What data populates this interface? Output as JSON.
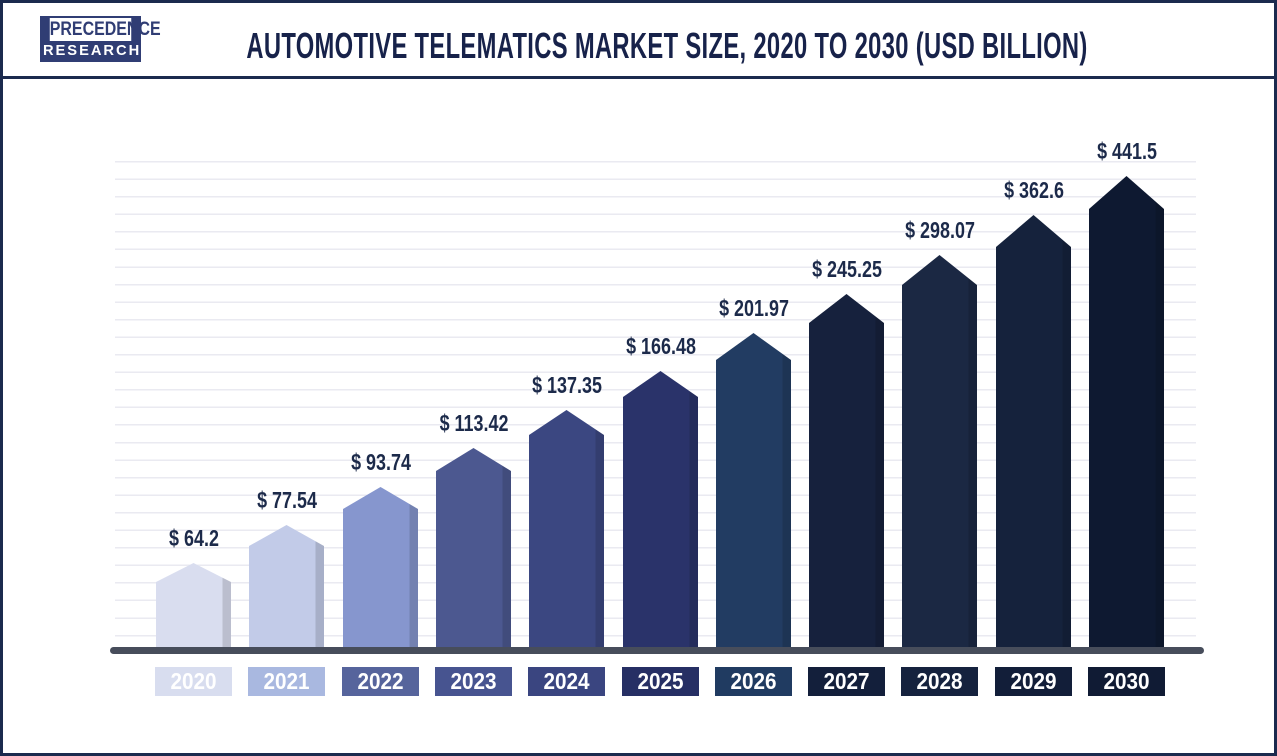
{
  "header": {
    "logo": {
      "line1": "PRECEDENCE",
      "line2": "RESEARCH"
    },
    "title": "AUTOMOTIVE TELEMATICS MARKET SIZE, 2020 TO 2030 (USD BILLION)"
  },
  "chart_data": {
    "type": "bar",
    "title": "Automotive Telematics Market Size, 2020 to 2030 (USD Billion)",
    "unit": "USD Billion",
    "categories": [
      "2020",
      "2021",
      "2022",
      "2023",
      "2024",
      "2025",
      "2026",
      "2027",
      "2028",
      "2029",
      "2030"
    ],
    "values": [
      64.2,
      77.54,
      93.74,
      113.42,
      137.35,
      166.48,
      201.97,
      245.25,
      298.07,
      362.6,
      441.5
    ],
    "value_labels": [
      "$ 64.2",
      "$ 77.54",
      "$ 93.74",
      "$ 113.42",
      "$ 137.35",
      "$ 166.48",
      "$ 201.97",
      "$ 245.25",
      "$ 298.07",
      "$ 362.6",
      "$ 441.5"
    ],
    "bar_colors": [
      "#D9DDEF",
      "#C2CBE8",
      "#8696CE",
      "#4C5890",
      "#3B4781",
      "#2A336A",
      "#223C62",
      "#16213D",
      "#1B2843",
      "#15223C",
      "#0E1931"
    ],
    "tick_colors": [
      "#D8DDEF",
      "#A9B8E0",
      "#56649C",
      "#475490",
      "#3A4580",
      "#262F64",
      "#203B61",
      "#131F3B",
      "#15223E",
      "#121E39",
      "#101B34"
    ],
    "xlabel": "",
    "ylabel": "",
    "grid": true,
    "legend_position": "none",
    "bar_shape": "pentagon"
  },
  "colors": {
    "title_text": "#17224A",
    "value_label_text": "#1C2A4A",
    "tick_text": "#FFFFFF",
    "axis_line": "#474D5B",
    "gridline": "#EAEAF1",
    "border": "#1B2A4E",
    "logo_navy": "#303D74",
    "background": "#FFFFFF"
  }
}
